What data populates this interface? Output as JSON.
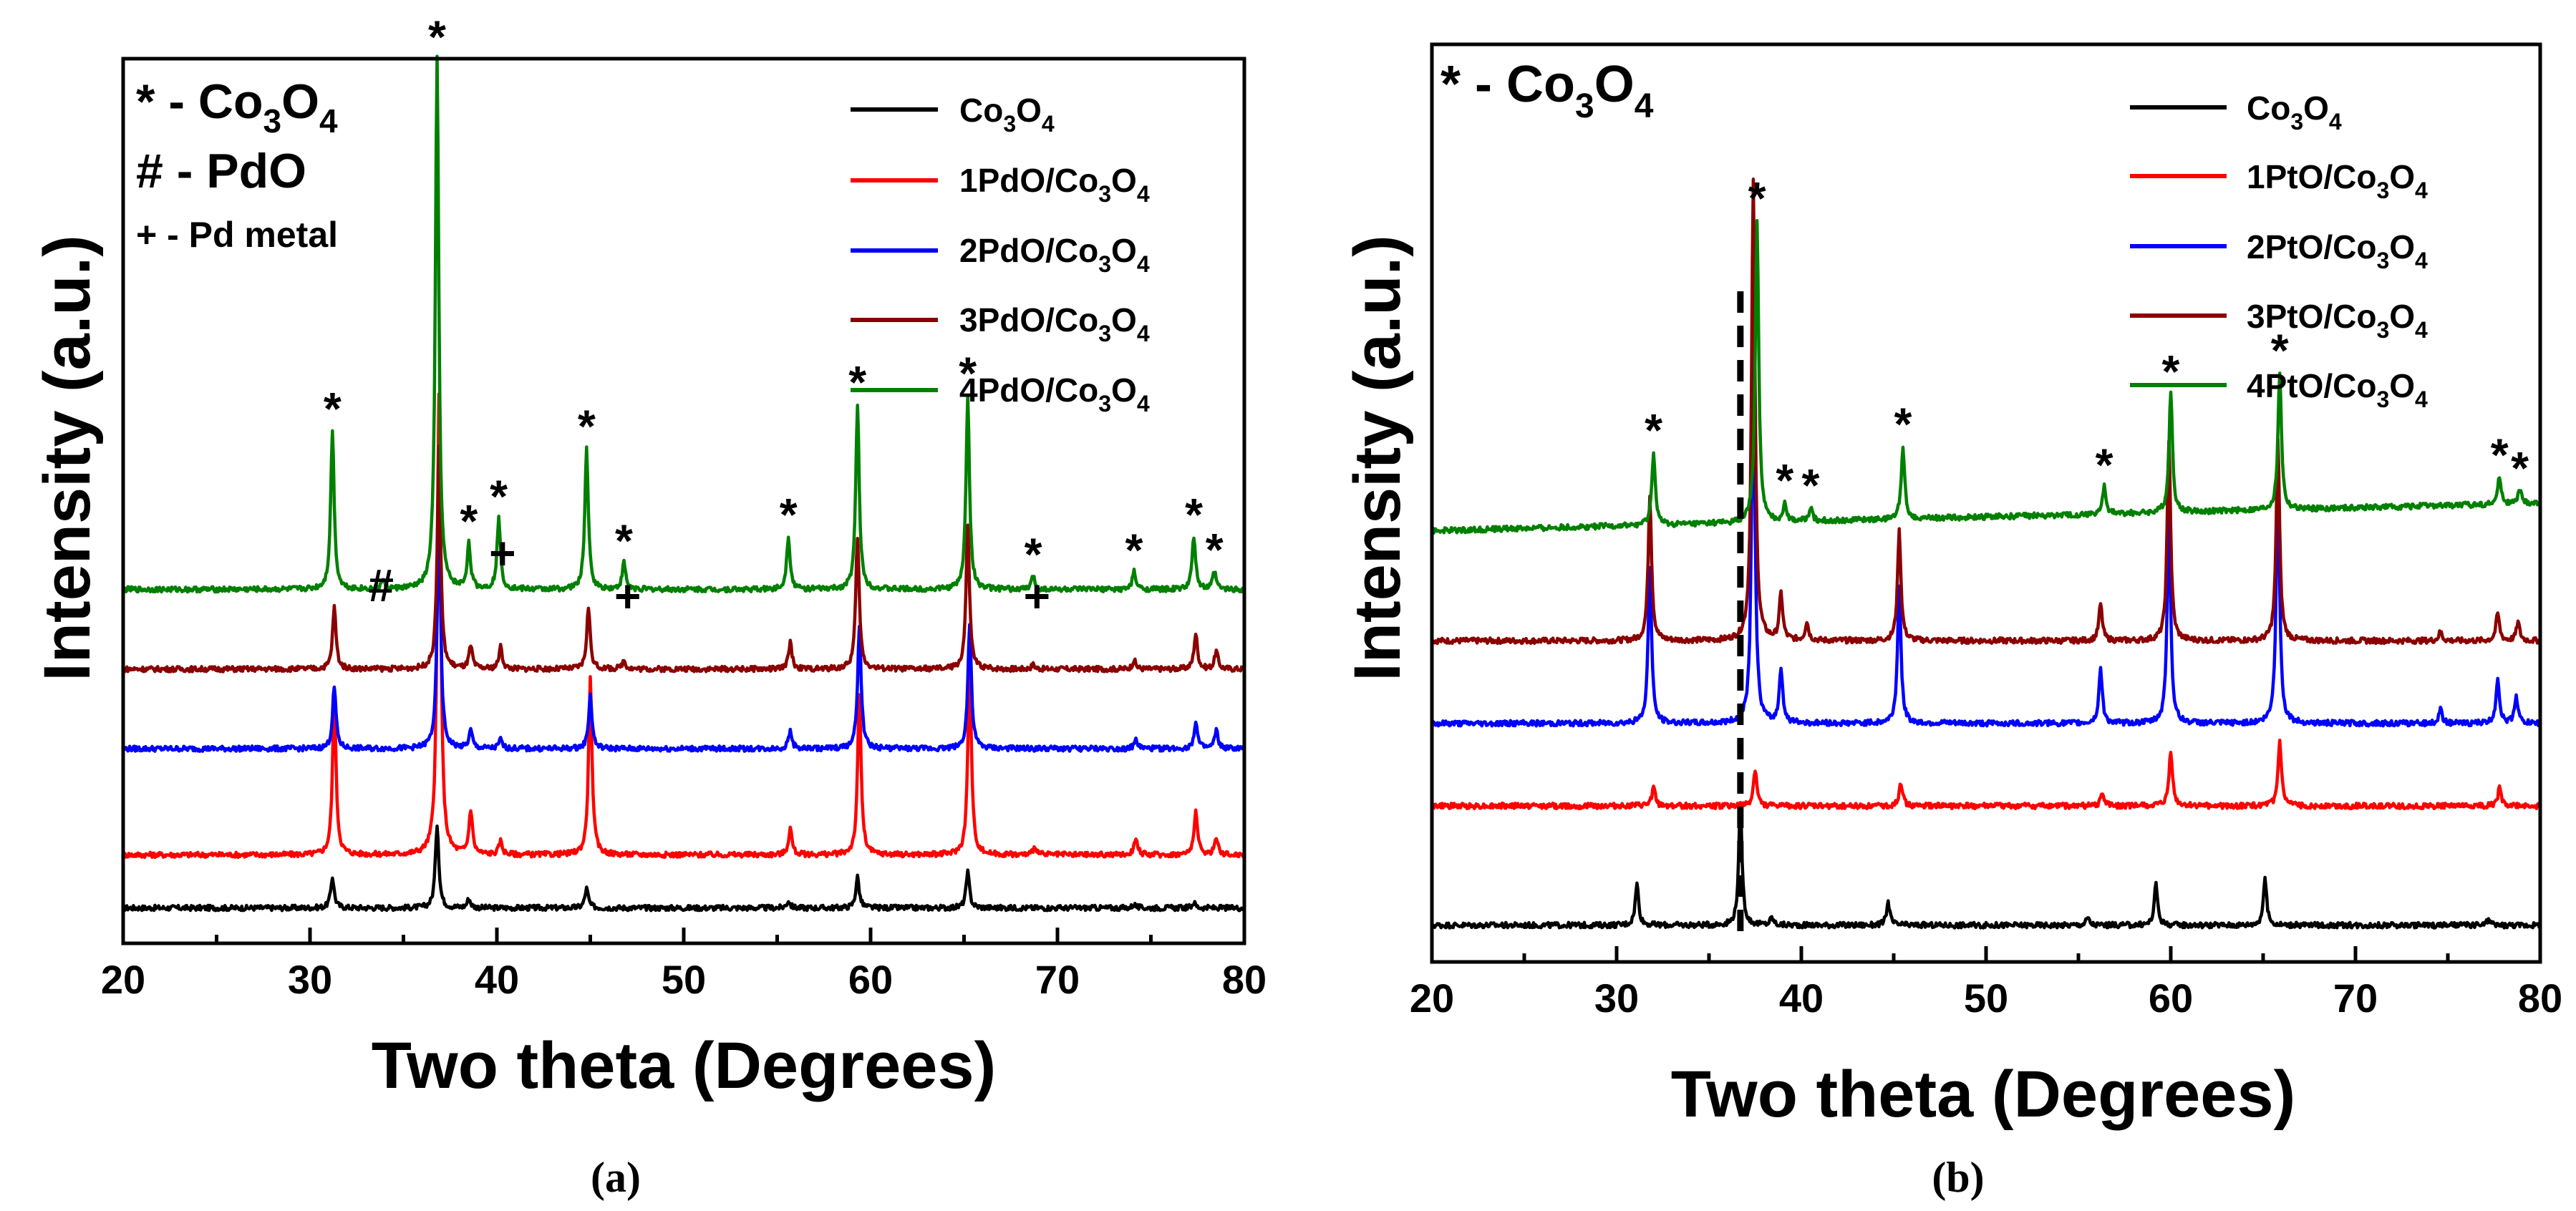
{
  "chart_data": [
    {
      "type": "line",
      "panel": "(a)",
      "xlabel": "Two theta (Degrees)",
      "ylabel": "Intensity (a.u.)",
      "xlim": [
        20,
        80
      ],
      "xticks": [
        "20",
        "30",
        "40",
        "50",
        "60",
        "70",
        "80"
      ],
      "annotations": [
        "* - Co3O4",
        "# - PdO",
        "+ - Pd metal"
      ],
      "series": [
        {
          "name": "Co3O4",
          "color": "#000000",
          "baseline": 0.04,
          "peaks": [
            [
              31.2,
              0.035
            ],
            [
              36.8,
              0.095
            ],
            [
              38.5,
              0.01
            ],
            [
              44.8,
              0.022
            ],
            [
              55.6,
              0.008
            ],
            [
              59.3,
              0.035
            ],
            [
              65.2,
              0.04
            ],
            [
              74.1,
              0.004
            ],
            [
              77.3,
              0.006
            ]
          ]
        },
        {
          "name": "1PdO/Co3O4",
          "color": "#ff0000",
          "baseline": 0.1,
          "peaks": [
            [
              31.3,
              0.18
            ],
            [
              36.9,
              0.52
            ],
            [
              38.6,
              0.05
            ],
            [
              40.2,
              0.015
            ],
            [
              45.0,
              0.2
            ],
            [
              55.7,
              0.03
            ],
            [
              59.4,
              0.18
            ],
            [
              65.3,
              0.22
            ],
            [
              68.8,
              0.01
            ],
            [
              74.2,
              0.02
            ],
            [
              77.4,
              0.05
            ],
            [
              78.5,
              0.02
            ]
          ]
        },
        {
          "name": "2PdO/Co3O4",
          "color": "#0000ff",
          "baseline": 0.22,
          "peaks": [
            [
              31.3,
              0.07
            ],
            [
              36.9,
              0.27
            ],
            [
              38.6,
              0.02
            ],
            [
              40.2,
              0.01
            ],
            [
              45.0,
              0.06
            ],
            [
              55.7,
              0.02
            ],
            [
              59.4,
              0.14
            ],
            [
              65.3,
              0.14
            ],
            [
              74.2,
              0.01
            ],
            [
              77.4,
              0.03
            ],
            [
              78.5,
              0.02
            ]
          ]
        },
        {
          "name": "3PdO/Co3O4",
          "color": "#8b0000",
          "baseline": 0.31,
          "peaks": [
            [
              31.3,
              0.07
            ],
            [
              36.9,
              0.25
            ],
            [
              38.6,
              0.025
            ],
            [
              40.2,
              0.025
            ],
            [
              44.9,
              0.07
            ],
            [
              46.8,
              0.01
            ],
            [
              55.7,
              0.03
            ],
            [
              59.3,
              0.15
            ],
            [
              65.2,
              0.16
            ],
            [
              68.7,
              0.005
            ],
            [
              74.1,
              0.01
            ],
            [
              77.4,
              0.04
            ],
            [
              78.5,
              0.02
            ]
          ]
        },
        {
          "name": "4PdO/Co3O4",
          "color": "#008000",
          "baseline": 0.4,
          "peaks": [
            [
              31.2,
              0.18
            ],
            [
              33.9,
              0.01
            ],
            [
              36.8,
              0.6
            ],
            [
              38.5,
              0.05
            ],
            [
              40.1,
              0.08
            ],
            [
              44.8,
              0.16
            ],
            [
              46.8,
              0.03
            ],
            [
              55.6,
              0.06
            ],
            [
              59.3,
              0.21
            ],
            [
              65.2,
              0.22
            ],
            [
              68.7,
              0.015
            ],
            [
              74.1,
              0.02
            ],
            [
              77.3,
              0.06
            ],
            [
              78.4,
              0.02
            ]
          ]
        }
      ]
    },
    {
      "type": "line",
      "panel": "(b)",
      "xlabel": "Two theta (Degrees)",
      "ylabel": "Intensity (a.u.)",
      "xlim": [
        20,
        80
      ],
      "xticks": [
        "20",
        "30",
        "40",
        "50",
        "60",
        "70",
        "80"
      ],
      "annotations": [
        "* - Co3O4"
      ],
      "reference_line_x": 36.7,
      "series": [
        {
          "name": "Co3O4",
          "color": "#000000",
          "baseline": 0.04,
          "peaks": [
            [
              31.1,
              0.045
            ],
            [
              36.7,
              0.13
            ],
            [
              38.4,
              0.008
            ],
            [
              44.7,
              0.025
            ],
            [
              55.5,
              0.008
            ],
            [
              59.2,
              0.045
            ],
            [
              65.1,
              0.05
            ],
            [
              77.2,
              0.006
            ]
          ]
        },
        {
          "name": "1PtO/Co3O4",
          "color": "#ff0000",
          "baseline": 0.17,
          "peaks": [
            [
              32.0,
              0.02
            ],
            [
              37.5,
              0.04
            ],
            [
              45.4,
              0.025
            ],
            [
              56.3,
              0.015
            ],
            [
              60.0,
              0.06
            ],
            [
              65.9,
              0.07
            ],
            [
              77.8,
              0.02
            ]
          ]
        },
        {
          "name": "2PtO/Co3O4",
          "color": "#0000ff",
          "baseline": 0.26,
          "peaks": [
            [
              31.8,
              0.17
            ],
            [
              37.4,
              0.4
            ],
            [
              38.9,
              0.06
            ],
            [
              45.3,
              0.15
            ],
            [
              56.2,
              0.06
            ],
            [
              59.9,
              0.23
            ],
            [
              65.8,
              0.27
            ],
            [
              74.6,
              0.015
            ],
            [
              77.7,
              0.05
            ],
            [
              78.7,
              0.03
            ]
          ]
        },
        {
          "name": "3PtO/Co3O4",
          "color": "#8b0000",
          "baseline": 0.35,
          "peaks": [
            [
              31.8,
              0.16
            ],
            [
              37.4,
              0.5
            ],
            [
              38.9,
              0.05
            ],
            [
              40.3,
              0.02
            ],
            [
              45.3,
              0.12
            ],
            [
              56.2,
              0.04
            ],
            [
              59.9,
              0.22
            ],
            [
              65.8,
              0.22
            ],
            [
              74.6,
              0.01
            ],
            [
              77.7,
              0.03
            ],
            [
              78.8,
              0.02
            ]
          ]
        },
        {
          "name": "4PtO/Co3O4",
          "color": "#008000",
          "baseline": 0.47,
          "slope": 0.03,
          "peaks": [
            [
              32.0,
              0.08
            ],
            [
              37.6,
              0.33
            ],
            [
              39.1,
              0.02
            ],
            [
              40.5,
              0.015
            ],
            [
              45.5,
              0.08
            ],
            [
              56.4,
              0.03
            ],
            [
              60.0,
              0.13
            ],
            [
              65.9,
              0.15
            ],
            [
              77.8,
              0.03
            ],
            [
              78.9,
              0.015
            ]
          ]
        }
      ]
    }
  ],
  "panel_a": {
    "caption": "(a)",
    "xlabel": "Two theta (Degrees)",
    "ylabel": "Intensity (a.u.)",
    "legend": [
      "Co3O4",
      "1PdO/Co3O4",
      "2PdO/Co3O4",
      "3PdO/Co3O4",
      "4PdO/Co3O4"
    ],
    "annot_pdo": "# - PdO",
    "annot_pd": "+ - Pd metal"
  },
  "panel_b": {
    "caption": "(b)",
    "xlabel": "Two theta (Degrees)",
    "ylabel": "Intensity (a.u.)",
    "legend": [
      "Co3O4",
      "1PtO/Co3O4",
      "2PtO/Co3O4",
      "3PtO/Co3O4",
      "4PtO/Co3O4"
    ]
  },
  "colors": [
    "#000000",
    "#ff0000",
    "#0000ff",
    "#8b0000",
    "#008000"
  ],
  "markers": {
    "star": "*",
    "hash": "#",
    "plus": "+"
  }
}
